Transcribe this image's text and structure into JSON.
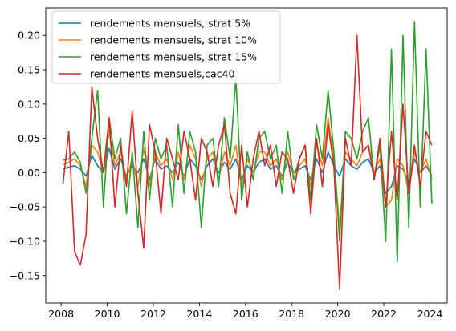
{
  "chart_data": {
    "type": "line",
    "title": "",
    "xlabel": "",
    "ylabel": "",
    "xlim": [
      "2007-05",
      "2024-10"
    ],
    "ylim": [
      -0.19,
      0.24
    ],
    "grid": false,
    "legend_position": "top-left",
    "x_ticks": [
      "2008",
      "2010",
      "2012",
      "2014",
      "2016",
      "2018",
      "2020",
      "2022",
      "2024"
    ],
    "y_ticks": [
      "−0.15",
      "−0.10",
      "−0.05",
      "0.00",
      "0.05",
      "0.10",
      "0.15",
      "0.20"
    ],
    "x": [
      "2008-02",
      "2008-05",
      "2008-08",
      "2008-11",
      "2009-02",
      "2009-05",
      "2009-08",
      "2009-11",
      "2010-02",
      "2010-05",
      "2010-08",
      "2010-11",
      "2011-02",
      "2011-05",
      "2011-08",
      "2011-11",
      "2012-02",
      "2012-05",
      "2012-08",
      "2012-11",
      "2013-02",
      "2013-05",
      "2013-08",
      "2013-11",
      "2014-02",
      "2014-05",
      "2014-08",
      "2014-11",
      "2015-02",
      "2015-05",
      "2015-08",
      "2015-11",
      "2016-02",
      "2016-05",
      "2016-08",
      "2016-11",
      "2017-02",
      "2017-05",
      "2017-08",
      "2017-11",
      "2018-02",
      "2018-05",
      "2018-08",
      "2018-11",
      "2019-02",
      "2019-05",
      "2019-08",
      "2019-11",
      "2020-02",
      "2020-05",
      "2020-08",
      "2020-11",
      "2021-02",
      "2021-05",
      "2021-08",
      "2021-11",
      "2022-02",
      "2022-05",
      "2022-08",
      "2022-11",
      "2023-02",
      "2023-05",
      "2023-08",
      "2023-11",
      "2024-02"
    ],
    "series": [
      {
        "name": "rendements mensuels, strat 5%",
        "color": "#1f77b4",
        "values": [
          0.005,
          0.008,
          0.01,
          0.005,
          -0.005,
          0.025,
          0.01,
          0.0,
          0.035,
          0.005,
          0.02,
          -0.005,
          0.01,
          0.0,
          0.02,
          -0.01,
          0.02,
          0.005,
          0.01,
          0.0,
          0.015,
          -0.005,
          0.02,
          0.01,
          -0.01,
          0.01,
          0.02,
          0.0,
          0.015,
          0.005,
          0.02,
          -0.01,
          0.01,
          0.0,
          0.015,
          0.02,
          0.005,
          0.01,
          -0.005,
          0.015,
          0.0,
          0.005,
          0.01,
          -0.01,
          0.02,
          0.0,
          0.03,
          0.01,
          -0.005,
          0.02,
          0.01,
          0.005,
          0.015,
          0.02,
          0.0,
          0.01,
          -0.03,
          -0.02,
          0.01,
          0.005,
          -0.015,
          0.02,
          0.0,
          0.01,
          -0.005
        ]
      },
      {
        "name": "rendements mensuels, strat 10%",
        "color": "#ff7f0e",
        "values": [
          0.012,
          0.015,
          0.02,
          0.01,
          -0.02,
          0.04,
          0.03,
          0.0,
          0.06,
          0.01,
          0.03,
          -0.01,
          0.02,
          -0.02,
          0.035,
          -0.02,
          0.03,
          0.01,
          0.02,
          -0.01,
          0.03,
          -0.01,
          0.04,
          0.02,
          -0.02,
          0.02,
          0.03,
          -0.01,
          0.03,
          0.01,
          0.04,
          -0.02,
          0.02,
          0.0,
          0.03,
          0.03,
          0.01,
          0.02,
          -0.01,
          0.03,
          0.0,
          0.01,
          0.02,
          -0.02,
          0.04,
          0.01,
          0.08,
          0.02,
          -0.08,
          0.03,
          0.02,
          0.01,
          0.03,
          0.04,
          0.0,
          0.02,
          -0.05,
          -0.04,
          0.02,
          0.01,
          -0.03,
          0.03,
          0.0,
          0.02,
          -0.01
        ]
      },
      {
        "name": "rendements mensuels, strat 15%",
        "color": "#2ca02c",
        "values": [
          0.018,
          0.02,
          0.03,
          0.015,
          -0.03,
          0.05,
          0.12,
          -0.05,
          0.08,
          0.02,
          0.05,
          -0.06,
          0.03,
          -0.08,
          0.06,
          -0.04,
          0.05,
          0.02,
          0.04,
          -0.05,
          0.07,
          -0.03,
          0.06,
          0.03,
          -0.08,
          0.04,
          0.05,
          -0.02,
          0.08,
          0.02,
          0.14,
          -0.04,
          0.03,
          -0.01,
          0.05,
          0.06,
          0.02,
          0.04,
          -0.03,
          0.06,
          -0.01,
          0.02,
          0.04,
          -0.04,
          0.07,
          0.02,
          0.12,
          0.03,
          -0.1,
          0.06,
          0.05,
          0.02,
          0.06,
          0.08,
          -0.01,
          0.04,
          -0.1,
          0.18,
          -0.13,
          0.2,
          -0.08,
          0.22,
          -0.05,
          0.18,
          -0.045
        ]
      },
      {
        "name": "rendements mensuels,cac40",
        "color": "#d62728",
        "values": [
          -0.016,
          0.06,
          -0.115,
          -0.135,
          -0.09,
          0.125,
          0.05,
          0.0,
          0.08,
          -0.05,
          0.04,
          -0.02,
          0.09,
          -0.03,
          -0.11,
          0.07,
          0.03,
          -0.06,
          0.05,
          0.02,
          -0.01,
          0.06,
          0.02,
          -0.04,
          0.05,
          0.03,
          -0.02,
          0.04,
          0.07,
          -0.03,
          -0.06,
          0.04,
          -0.05,
          0.02,
          0.06,
          0.01,
          0.04,
          -0.02,
          0.03,
          0.02,
          -0.03,
          0.02,
          0.04,
          -0.06,
          0.05,
          -0.02,
          0.07,
          0.01,
          -0.17,
          0.05,
          0.01,
          0.2,
          0.03,
          0.04,
          -0.01,
          0.05,
          -0.05,
          0.06,
          -0.04,
          0.1,
          -0.03,
          0.04,
          -0.02,
          0.06,
          0.04
        ]
      }
    ]
  }
}
